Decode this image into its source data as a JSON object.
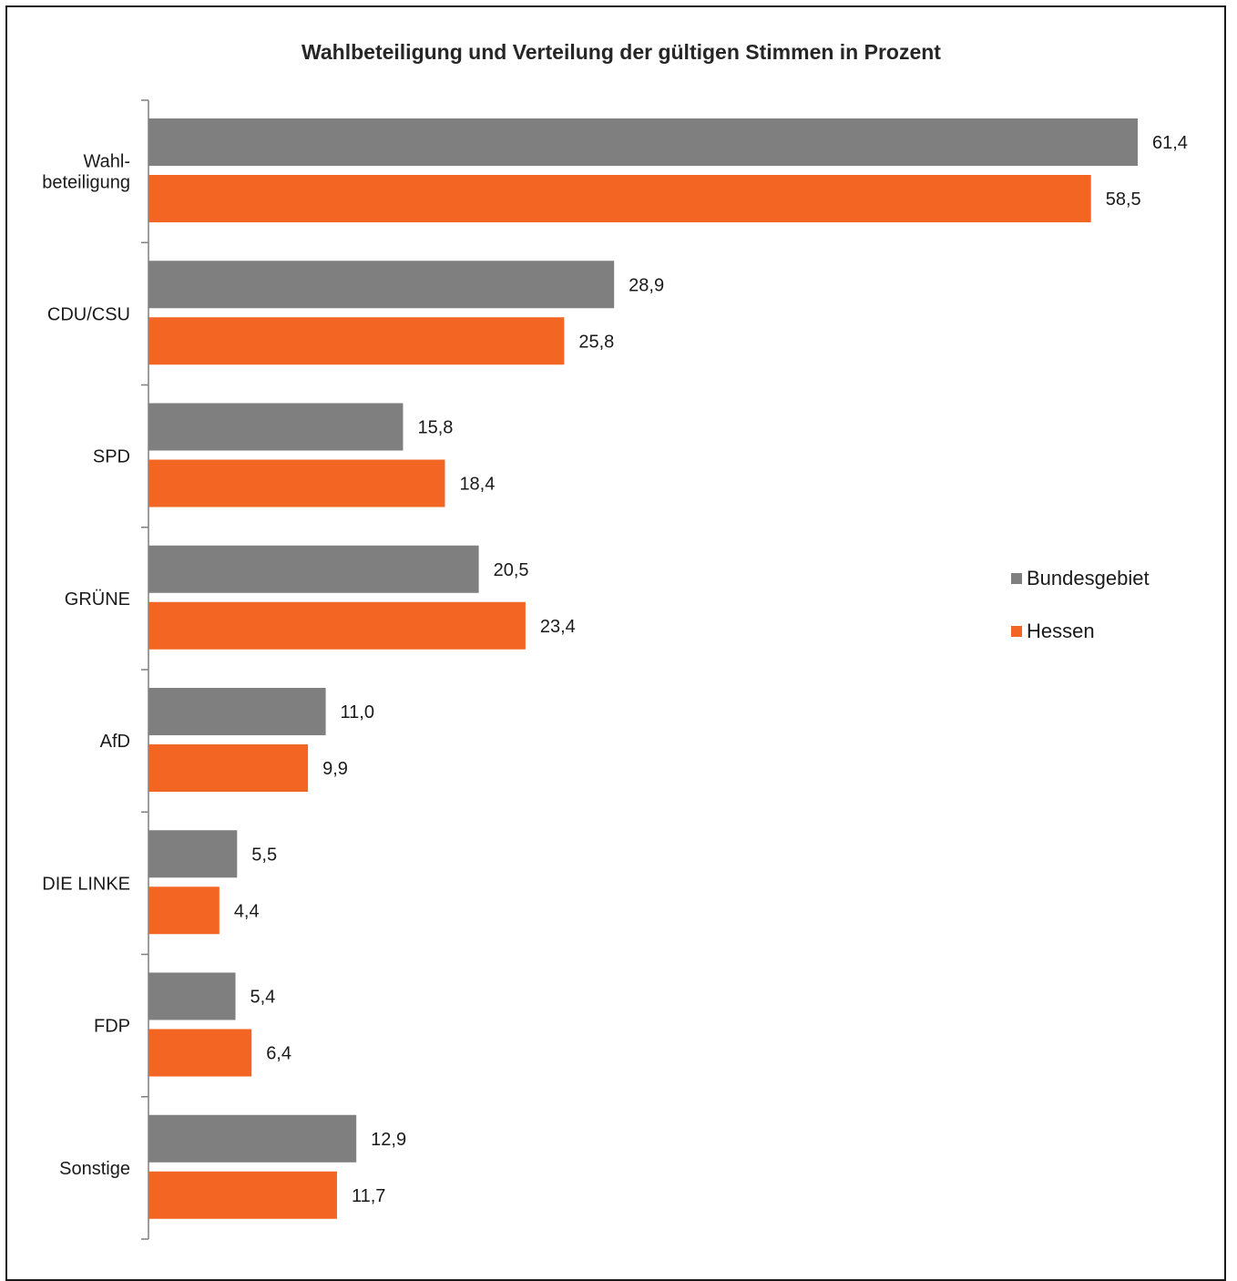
{
  "chart_data": {
    "type": "bar",
    "orientation": "horizontal",
    "title": "Wahlbeteiligung und Verteilung der gültigen Stimmen in Prozent",
    "categories": [
      "Wahl-\nbeteiligung",
      "CDU/CSU",
      "SPD",
      "GRÜNE",
      "AfD",
      "DIE LINKE",
      "FDP",
      "Sonstige"
    ],
    "series": [
      {
        "name": "Bundesgebiet",
        "color": "#7f7f7f",
        "values": [
          61.4,
          28.9,
          15.8,
          20.5,
          11.0,
          5.5,
          5.4,
          12.9
        ],
        "labels": [
          "61,4",
          "28,9",
          "15,8",
          "20,5",
          "11,0",
          "5,5",
          "5,4",
          "12,9"
        ]
      },
      {
        "name": "Hessen",
        "color": "#f26522",
        "values": [
          58.5,
          25.8,
          18.4,
          23.4,
          9.9,
          4.4,
          6.4,
          11.7
        ],
        "labels": [
          "58,5",
          "25,8",
          "18,4",
          "23,4",
          "9,9",
          "4,4",
          "6,4",
          "11,7"
        ]
      }
    ],
    "xlim": [
      0,
      61.4
    ],
    "xlabel": "",
    "ylabel": "",
    "grid": false,
    "legend_position": "right"
  }
}
